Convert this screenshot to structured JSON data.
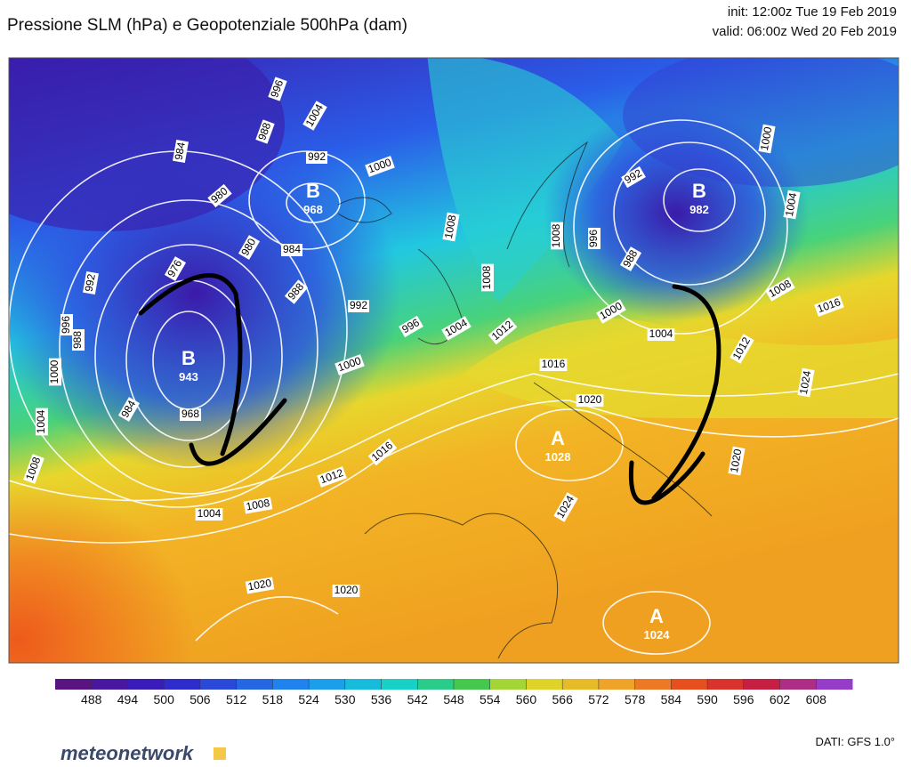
{
  "header": {
    "title": "Pressione SLM (hPa) e Geopotenziale 500hPa (dam)",
    "init": "init: 12:00z Tue 19 Feb 2019",
    "valid": "valid: 06:00z Wed 20 Feb 2019"
  },
  "map": {
    "isobar_labels": [
      "996",
      "1004",
      "988",
      "992",
      "1000",
      "984",
      "980",
      "980",
      "984",
      "976",
      "992",
      "988",
      "992",
      "996",
      "988",
      "1000",
      "996",
      "1004",
      "1000",
      "984",
      "968",
      "1004",
      "1008",
      "1008",
      "1008",
      "1012",
      "1008",
      "996",
      "992",
      "988",
      "1000",
      "1004",
      "1000",
      "1004",
      "1008",
      "1016",
      "1012",
      "1024",
      "1020",
      "1016",
      "1020",
      "1024",
      "1012",
      "1016",
      "1008",
      "1004",
      "1020",
      "1020"
    ],
    "centers": [
      {
        "letter": "B",
        "value": "968"
      },
      {
        "letter": "B",
        "value": "943"
      },
      {
        "letter": "B",
        "value": "982"
      },
      {
        "letter": "A",
        "value": "1028"
      },
      {
        "letter": "A",
        "value": "1024"
      }
    ]
  },
  "colorbar": {
    "ticks": [
      488,
      494,
      500,
      506,
      512,
      518,
      524,
      530,
      536,
      542,
      548,
      554,
      560,
      566,
      572,
      578,
      584,
      590,
      596,
      602,
      608
    ]
  },
  "footer": {
    "logo": "meteonetwork",
    "source": "DATI: GFS 1.0°"
  }
}
